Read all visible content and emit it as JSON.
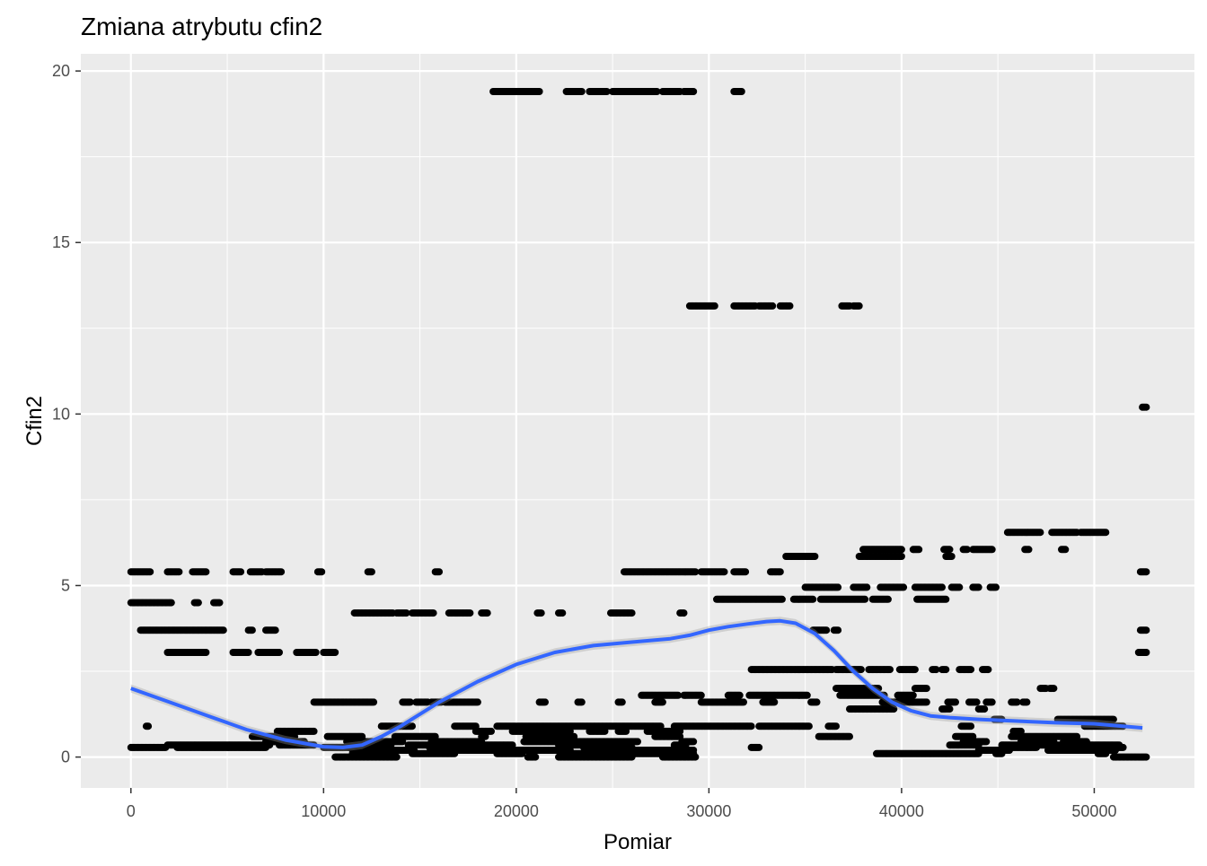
{
  "chart_data": {
    "type": "scatter",
    "title": "Zmiana atrybutu cfin2",
    "xlabel": "Pomiar",
    "ylabel": "Cfin2",
    "xlim": [
      -2600,
      55200
    ],
    "ylim": [
      -0.9,
      20.5
    ],
    "x_ticks": [
      0,
      10000,
      20000,
      30000,
      40000,
      50000
    ],
    "y_ticks": [
      0,
      5,
      10,
      15,
      20
    ],
    "grid": true,
    "panel_background": "#ebebeb",
    "point_color": "#000000",
    "smooth_color": "#3366ff",
    "clusters": [
      {
        "y": 19.4,
        "x": [
          [
            18800,
            21200
          ],
          [
            22600,
            23400
          ],
          [
            23800,
            24700
          ],
          [
            25000,
            27300
          ],
          [
            27600,
            28500
          ],
          [
            28700,
            29200
          ],
          [
            31300,
            31700
          ]
        ]
      },
      {
        "y": 13.15,
        "x": [
          [
            29000,
            30300
          ],
          [
            31300,
            32400
          ],
          [
            32600,
            33300
          ],
          [
            33700,
            34200
          ],
          [
            36900,
            37300
          ],
          [
            37500,
            37800
          ]
        ]
      },
      {
        "y": 10.2,
        "x": [
          [
            52500,
            52700
          ]
        ]
      },
      {
        "y": 6.55,
        "x": [
          [
            45500,
            47200
          ],
          [
            47800,
            49100
          ],
          [
            49300,
            50600
          ]
        ]
      },
      {
        "y": 6.05,
        "x": [
          [
            38000,
            40000
          ],
          [
            40600,
            40900
          ],
          [
            42200,
            42500
          ],
          [
            43200,
            43400
          ],
          [
            43700,
            44700
          ],
          [
            46400,
            46600
          ],
          [
            48300,
            48500
          ]
        ]
      },
      {
        "y": 5.85,
        "x": [
          [
            34000,
            35500
          ],
          [
            37800,
            40000
          ],
          [
            42300,
            42600
          ]
        ]
      },
      {
        "y": 5.4,
        "x": [
          [
            0,
            1000
          ],
          [
            1900,
            2500
          ],
          [
            3200,
            3900
          ],
          [
            5300,
            5700
          ],
          [
            6200,
            6800
          ],
          [
            7000,
            7800
          ],
          [
            9700,
            9900
          ],
          [
            12300,
            12500
          ],
          [
            15800,
            16000
          ],
          [
            25600,
            29300
          ],
          [
            29600,
            30800
          ],
          [
            31300,
            31900
          ],
          [
            33200,
            33700
          ],
          [
            52400,
            52700
          ]
        ]
      },
      {
        "y": 4.95,
        "x": [
          [
            35000,
            36700
          ],
          [
            37500,
            38200
          ],
          [
            38900,
            40100
          ],
          [
            40700,
            42100
          ],
          [
            42600,
            43000
          ],
          [
            43700,
            44000
          ],
          [
            44600,
            44900
          ]
        ]
      },
      {
        "y": 4.6,
        "x": [
          [
            30400,
            33800
          ],
          [
            34400,
            35400
          ],
          [
            35800,
            38100
          ],
          [
            38500,
            39300
          ],
          [
            40800,
            42300
          ]
        ]
      },
      {
        "y": 4.5,
        "x": [
          [
            0,
            2100
          ],
          [
            3300,
            3500
          ],
          [
            4300,
            4600
          ]
        ]
      },
      {
        "y": 4.2,
        "x": [
          [
            11600,
            13600
          ],
          [
            13800,
            14300
          ],
          [
            14600,
            15700
          ],
          [
            16500,
            17600
          ],
          [
            18200,
            18500
          ],
          [
            21100,
            21300
          ],
          [
            22200,
            22400
          ],
          [
            24900,
            26000
          ],
          [
            28500,
            28700
          ]
        ]
      },
      {
        "y": 3.7,
        "x": [
          [
            500,
            4800
          ],
          [
            6100,
            6300
          ],
          [
            7000,
            7500
          ],
          [
            35400,
            36100
          ],
          [
            36500,
            36700
          ],
          [
            52400,
            52700
          ]
        ]
      },
      {
        "y": 3.05,
        "x": [
          [
            1900,
            3900
          ],
          [
            5300,
            6100
          ],
          [
            6600,
            7700
          ],
          [
            8600,
            9600
          ],
          [
            10000,
            10600
          ],
          [
            52300,
            52700
          ]
        ]
      },
      {
        "y": 2.55,
        "x": [
          [
            32200,
            36400
          ],
          [
            36600,
            37900
          ],
          [
            38300,
            39400
          ],
          [
            39900,
            40700
          ],
          [
            41600,
            41800
          ],
          [
            42100,
            42300
          ],
          [
            43000,
            43600
          ],
          [
            44200,
            44500
          ]
        ]
      },
      {
        "y": 2.0,
        "x": [
          [
            36600,
            38800
          ],
          [
            40700,
            41300
          ],
          [
            47200,
            47500
          ],
          [
            47700,
            47900
          ]
        ]
      },
      {
        "y": 1.8,
        "x": [
          [
            26500,
            28400
          ],
          [
            28700,
            29600
          ],
          [
            31000,
            31600
          ],
          [
            32100,
            35100
          ],
          [
            36800,
            39100
          ],
          [
            39800,
            40600
          ]
        ]
      },
      {
        "y": 1.6,
        "x": [
          [
            9500,
            12600
          ],
          [
            14100,
            14500
          ],
          [
            14800,
            15400
          ],
          [
            15600,
            16100
          ],
          [
            16300,
            18000
          ],
          [
            21200,
            21500
          ],
          [
            23200,
            23400
          ],
          [
            25300,
            25500
          ],
          [
            27200,
            27600
          ],
          [
            29600,
            31800
          ],
          [
            32800,
            33400
          ],
          [
            35300,
            35600
          ],
          [
            39000,
            41300
          ],
          [
            42400,
            42800
          ],
          [
            43500,
            43900
          ],
          [
            44400,
            44700
          ],
          [
            45700,
            46000
          ],
          [
            46300,
            46500
          ]
        ]
      },
      {
        "y": 1.4,
        "x": [
          [
            37300,
            39600
          ],
          [
            42100,
            42500
          ],
          [
            44000,
            44300
          ]
        ]
      },
      {
        "y": 1.1,
        "x": [
          [
            44800,
            45200
          ],
          [
            48100,
            51000
          ]
        ]
      },
      {
        "y": 0.9,
        "x": [
          [
            800,
            900
          ],
          [
            13000,
            14600
          ],
          [
            16800,
            17900
          ],
          [
            19000,
            27500
          ],
          [
            28200,
            32200
          ],
          [
            32600,
            35200
          ],
          [
            36200,
            36600
          ],
          [
            43100,
            43600
          ],
          [
            49500,
            51500
          ]
        ]
      },
      {
        "y": 0.75,
        "x": [
          [
            7600,
            9500
          ],
          [
            17900,
            18700
          ],
          [
            19800,
            22800
          ],
          [
            23800,
            24600
          ],
          [
            25300,
            25700
          ],
          [
            26800,
            28500
          ],
          [
            45800,
            46200
          ]
        ]
      },
      {
        "y": 0.6,
        "x": [
          [
            6300,
            8500
          ],
          [
            10200,
            12000
          ],
          [
            13700,
            15800
          ],
          [
            18200,
            18400
          ],
          [
            20500,
            23000
          ],
          [
            27200,
            28500
          ],
          [
            35700,
            37300
          ],
          [
            42800,
            43700
          ],
          [
            45700,
            49100
          ]
        ]
      },
      {
        "y": 0.45,
        "x": [
          [
            7000,
            9000
          ],
          [
            11200,
            14100
          ],
          [
            15600,
            18200
          ],
          [
            20400,
            26300
          ],
          [
            28600,
            29200
          ],
          [
            43200,
            44400
          ],
          [
            46200,
            47900
          ],
          [
            48400,
            49600
          ]
        ]
      },
      {
        "y": 0.35,
        "x": [
          [
            1900,
            7200
          ],
          [
            7700,
            9500
          ],
          [
            12800,
            13500
          ],
          [
            14400,
            19800
          ],
          [
            22200,
            25800
          ],
          [
            28200,
            28800
          ],
          [
            42500,
            44000
          ],
          [
            45200,
            51300
          ]
        ]
      },
      {
        "y": 0.28,
        "x": [
          [
            0,
            1800
          ],
          [
            2400,
            7000
          ],
          [
            10000,
            12500
          ],
          [
            15500,
            18600
          ],
          [
            23500,
            26000
          ],
          [
            32200,
            32600
          ],
          [
            45500,
            47000
          ],
          [
            48500,
            51500
          ]
        ]
      },
      {
        "y": 0.2,
        "x": [
          [
            11500,
            14700
          ],
          [
            16200,
            22800
          ],
          [
            24500,
            29200
          ],
          [
            44000,
            45600
          ],
          [
            47600,
            51100
          ]
        ]
      },
      {
        "y": 0.1,
        "x": [
          [
            11500,
            12800
          ],
          [
            14600,
            16800
          ],
          [
            19000,
            20300
          ],
          [
            23000,
            29200
          ],
          [
            38700,
            44000
          ],
          [
            44900,
            45200
          ],
          [
            50200,
            50600
          ]
        ]
      },
      {
        "y": 0.0,
        "x": [
          [
            10600,
            13800
          ],
          [
            20600,
            21000
          ],
          [
            22200,
            26000
          ],
          [
            27600,
            29300
          ],
          [
            51000,
            52700
          ]
        ]
      }
    ],
    "smooth_line": {
      "x": [
        0,
        2000,
        4000,
        6000,
        8000,
        10000,
        11000,
        12000,
        13000,
        14000,
        15000,
        16000,
        18000,
        20000,
        22000,
        24000,
        26000,
        28000,
        29000,
        30000,
        31000,
        32000,
        33000,
        33700,
        34500,
        35500,
        36500,
        37500,
        38500,
        39500,
        40500,
        41500,
        42500,
        44000,
        46000,
        48000,
        50000,
        52500
      ],
      "y": [
        2.0,
        1.6,
        1.2,
        0.8,
        0.5,
        0.3,
        0.28,
        0.35,
        0.6,
        0.9,
        1.25,
        1.6,
        2.2,
        2.7,
        3.05,
        3.25,
        3.35,
        3.45,
        3.55,
        3.7,
        3.8,
        3.88,
        3.95,
        3.97,
        3.9,
        3.6,
        3.1,
        2.5,
        2.0,
        1.6,
        1.35,
        1.2,
        1.15,
        1.1,
        1.05,
        1.0,
        0.97,
        0.85
      ]
    }
  }
}
